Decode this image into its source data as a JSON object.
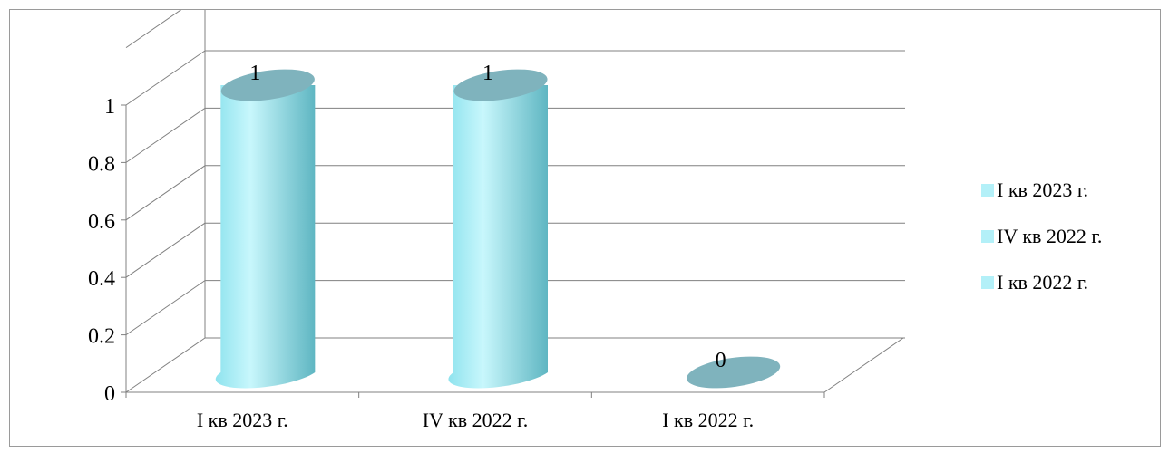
{
  "chart_data": {
    "type": "bar",
    "style": "3d-cylinder",
    "categories": [
      "I кв 2023 г.",
      "IV кв 2022 г.",
      "I кв 2022 г."
    ],
    "values": [
      1,
      1,
      0
    ],
    "data_labels": [
      "1",
      "1",
      "0"
    ],
    "ylim": [
      0,
      1
    ],
    "y_ticks": [
      "0",
      "0.2",
      "0.4",
      "0.6",
      "0.8",
      "1"
    ],
    "grid": true,
    "legend": {
      "position": "right",
      "entries": [
        "I кв 2023 г.",
        "IV кв 2022 г.",
        "I кв 2022 г."
      ]
    },
    "colors": {
      "bar_light": "#c8f7fc",
      "bar_mid": "#8fe3ee",
      "bar_dark": "#5fb6c2",
      "bar_top": "#7fb3bd",
      "legend_swatch": "#b3f0f8",
      "grid": "#808080"
    }
  }
}
